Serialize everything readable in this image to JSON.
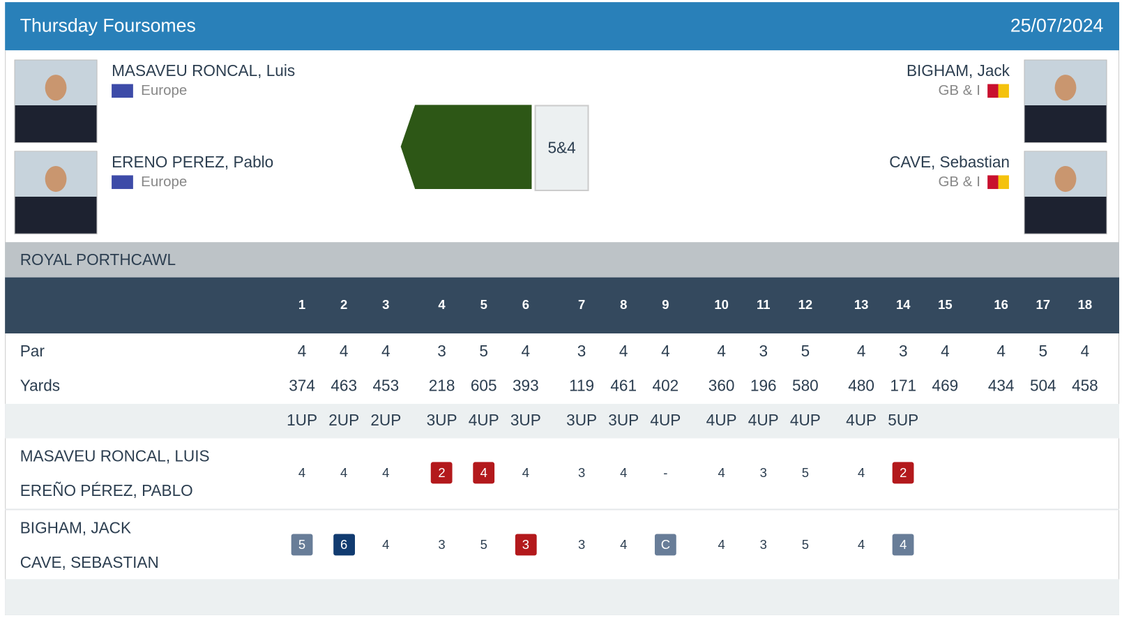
{
  "header": {
    "title": "Thursday Foursomes",
    "date": "25/07/2024"
  },
  "match": {
    "left": [
      {
        "name": "MASAVEU RONCAL, Luis",
        "team": "Europe"
      },
      {
        "name": "ERENO PEREZ, Pablo",
        "team": "Europe"
      }
    ],
    "right": [
      {
        "name": "BIGHAM, Jack",
        "team": "GB & I"
      },
      {
        "name": "CAVE, Sebastian",
        "team": "GB & I"
      }
    ],
    "result": "5&4"
  },
  "course": "ROYAL PORTHCAWL",
  "table": {
    "holes": [
      1,
      2,
      3,
      4,
      5,
      6,
      7,
      8,
      9,
      10,
      11,
      12,
      13,
      14,
      15,
      16,
      17,
      18
    ],
    "par_label": "Par",
    "par": [
      4,
      4,
      4,
      3,
      5,
      4,
      3,
      4,
      4,
      4,
      3,
      5,
      4,
      3,
      4,
      4,
      5,
      4
    ],
    "yards_label": "Yards",
    "yards": [
      374,
      463,
      453,
      218,
      605,
      393,
      119,
      461,
      402,
      360,
      196,
      580,
      480,
      171,
      469,
      434,
      504,
      458
    ],
    "status": [
      "1UP",
      "2UP",
      "2UP",
      "3UP",
      "4UP",
      "3UP",
      "3UP",
      "3UP",
      "4UP",
      "4UP",
      "4UP",
      "4UP",
      "4UP",
      "5UP"
    ],
    "teams": [
      {
        "players": [
          "MASAVEU RONCAL, LUIS",
          "EREÑO PÉREZ, PABLO"
        ],
        "scores": [
          4,
          4,
          4,
          {
            "value": 2,
            "color": "#b3191c"
          },
          {
            "value": 4,
            "color": "#b3191c"
          },
          4,
          3,
          4,
          "-",
          4,
          3,
          5,
          4,
          {
            "value": 2,
            "color": "#b3191c"
          }
        ]
      },
      {
        "players": [
          "BIGHAM, JACK",
          "CAVE, SEBASTIAN"
        ],
        "scores": [
          {
            "value": 5,
            "color": "#687d98"
          },
          {
            "value": 6,
            "color": "#113b70"
          },
          4,
          3,
          5,
          {
            "value": 3,
            "color": "#b3191c"
          },
          3,
          4,
          {
            "value": "C",
            "color": "#687d98"
          },
          4,
          3,
          5,
          4,
          {
            "value": 4,
            "color": "#687d98"
          }
        ]
      }
    ]
  }
}
